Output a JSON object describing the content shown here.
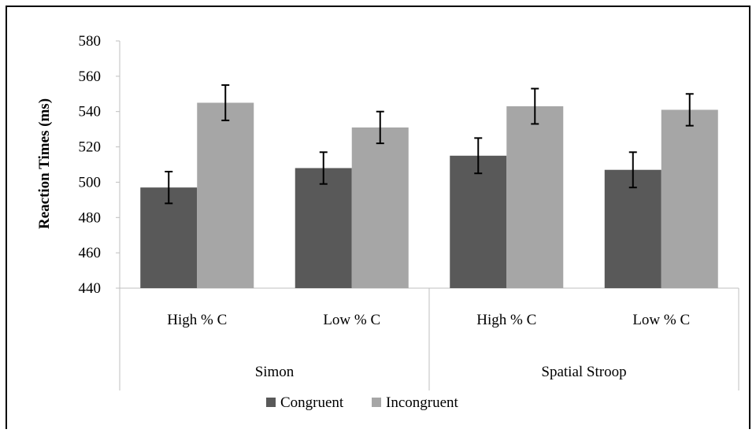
{
  "chart_data": {
    "type": "bar",
    "ylabel": "Reaction Times (ms)",
    "xlabel": "",
    "ylim": [
      440,
      580
    ],
    "yticks": [
      440,
      460,
      480,
      500,
      520,
      540,
      560,
      580
    ],
    "grid": false,
    "legend_position": "bottom",
    "groups": [
      {
        "name": "Simon",
        "categories": [
          "High % C",
          "Low % C"
        ]
      },
      {
        "name": "Spatial Stroop",
        "categories": [
          "High % C",
          "Low % C"
        ]
      }
    ],
    "categories": [
      "High % C",
      "Low % C",
      "High % C",
      "Low % C"
    ],
    "series": [
      {
        "name": "Congruent",
        "color": "#595959",
        "values": [
          497,
          508,
          515,
          507
        ],
        "error": [
          9,
          9,
          10,
          10
        ]
      },
      {
        "name": "Incongruent",
        "color": "#a6a6a6",
        "values": [
          545,
          531,
          543,
          541
        ],
        "error": [
          10,
          9,
          10,
          9
        ]
      }
    ]
  }
}
